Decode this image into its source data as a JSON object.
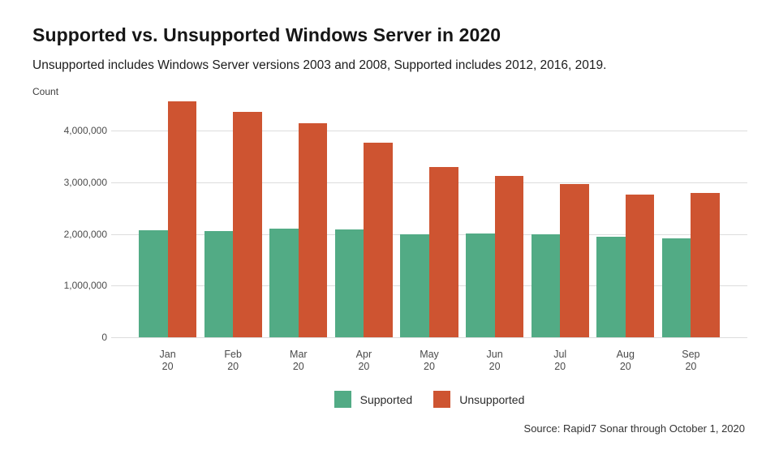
{
  "header": {
    "title": "Supported vs. Unsupported Windows Server in 2020",
    "subtitle": "Unsupported includes Windows Server versions 2003 and 2008, Supported includes 2012, 2016, 2019."
  },
  "footer": {
    "source": "Source: Rapid7 Sonar through October 1, 2020"
  },
  "colors": {
    "supported": "#52ab85",
    "unsupported": "#ce5431",
    "gridline": "#dcdcdc",
    "tick_text": "#4c4c4c"
  },
  "chart_data": {
    "type": "bar",
    "title": "Supported vs. Unsupported Windows Server in 2020",
    "subtitle": "Unsupported includes Windows Server versions 2003 and 2008, Supported includes 2012, 2016, 2019.",
    "xlabel": "",
    "ylabel": "Count",
    "categories": [
      "Jan 20",
      "Feb 20",
      "Mar 20",
      "Apr 20",
      "May 20",
      "Jun 20",
      "Jul 20",
      "Aug 20",
      "Sep 20"
    ],
    "series": [
      {
        "name": "Supported",
        "color": "#52ab85",
        "values": [
          2080000,
          2060000,
          2100000,
          2090000,
          2000000,
          2010000,
          2000000,
          1950000,
          1920000
        ]
      },
      {
        "name": "Unsupported",
        "color": "#ce5431",
        "values": [
          4570000,
          4360000,
          4150000,
          3760000,
          3290000,
          3130000,
          2970000,
          2760000,
          2790000
        ]
      }
    ],
    "ylim": [
      0,
      4600000
    ],
    "yticks": [
      0,
      1000000,
      2000000,
      3000000,
      4000000
    ],
    "ytick_labels": [
      "0",
      "1,000,000",
      "2,000,000",
      "3,000,000",
      "4,000,000"
    ],
    "grid": true,
    "legend_position": "bottom",
    "source": "Source: Rapid7 Sonar through October 1, 2020"
  }
}
